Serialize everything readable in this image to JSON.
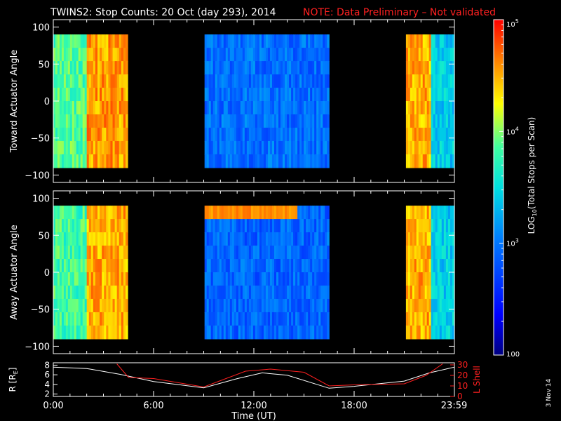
{
  "header": {
    "title": "TWINS2: Stop Counts: 20 Oct (day 293), 2014",
    "note": "NOTE: Data Preliminary – Not validated"
  },
  "colors": {
    "background": "#000000",
    "axes": "#ffffff",
    "note": "#ff2020",
    "r_line": "#ffffff",
    "l_shell_line": "#ff2020"
  },
  "side_date": "3 Nov 14",
  "chart_data": [
    {
      "type": "heatmap",
      "ylabel": "Toward Actuator Angle",
      "y_ticks": [
        "100",
        "50",
        "0",
        "−50",
        "−100"
      ],
      "ylim": [
        -110,
        110
      ],
      "xlim_hours": [
        0,
        24
      ],
      "data_y_range": [
        -90,
        90
      ],
      "data_x_intervals_hours": [
        [
          0.0,
          4.45
        ],
        [
          9.05,
          16.5
        ],
        [
          21.1,
          24.0
        ]
      ],
      "segments": [
        {
          "x_hours": [
            0.0,
            2.0
          ],
          "log10_value": 3.85
        },
        {
          "x_hours": [
            2.0,
            4.45
          ],
          "log10_value": 4.55
        },
        {
          "x_hours": [
            9.05,
            16.5
          ],
          "log10_value": 2.95
        },
        {
          "x_hours": [
            21.1,
            22.6
          ],
          "log10_value": 4.5
        },
        {
          "x_hours": [
            22.6,
            24.0
          ],
          "log10_value": 3.4
        }
      ]
    },
    {
      "type": "heatmap",
      "ylabel": "Away Actuator Angle",
      "y_ticks": [
        "100",
        "50",
        "0",
        "−50",
        "−100"
      ],
      "ylim": [
        -110,
        110
      ],
      "xlim_hours": [
        0,
        24
      ],
      "data_y_range": [
        -90,
        90
      ],
      "data_x_intervals_hours": [
        [
          0.0,
          4.45
        ],
        [
          9.05,
          16.5
        ],
        [
          21.1,
          24.0
        ]
      ],
      "features": [
        {
          "description_value": "band near +80 deg",
          "x_hours": [
            9.05,
            14.5
          ],
          "log10_value": 4.6
        }
      ],
      "segments": [
        {
          "x_hours": [
            0.0,
            2.0
          ],
          "log10_value": 3.8
        },
        {
          "x_hours": [
            2.0,
            4.45
          ],
          "log10_value": 4.5
        },
        {
          "x_hours": [
            9.05,
            16.5
          ],
          "log10_value": 2.9
        },
        {
          "x_hours": [
            21.1,
            22.6
          ],
          "log10_value": 4.5
        },
        {
          "x_hours": [
            22.6,
            24.0
          ],
          "log10_value": 3.4
        }
      ]
    },
    {
      "type": "line",
      "ylabel": "R [R",
      "ylabel_sub": "E",
      "ylabel_close": "]",
      "y2label": "L Shell",
      "xlabel": "Time (UT)",
      "x_ticks": [
        "0:00",
        "6:00",
        "12:00",
        "18:00",
        "23:59"
      ],
      "x_tick_hours": [
        0,
        6,
        12,
        18,
        23.98
      ],
      "y_ticks": [
        "8",
        "6",
        "4",
        "2"
      ],
      "y_tick_values": [
        8,
        6,
        4,
        2
      ],
      "ylim": [
        1.5,
        8.5
      ],
      "y2_ticks": [
        "30",
        "20",
        "10",
        "0"
      ],
      "y2_tick_values": [
        30,
        20,
        10,
        0
      ],
      "y2lim": [
        0,
        32
      ],
      "series": [
        {
          "name": "R",
          "x": [
            0,
            2,
            4,
            6,
            9,
            11,
            12.5,
            14,
            16.5,
            18,
            21,
            22.5,
            24
          ],
          "y": [
            7.6,
            7.3,
            6.1,
            4.6,
            3.3,
            5.2,
            6.4,
            5.9,
            3.2,
            3.6,
            4.7,
            6.4,
            7.6
          ]
        },
        {
          "name": "L Shell",
          "x": [
            3.8,
            4.5,
            6,
            9,
            11.5,
            13,
            15,
            16.5,
            18,
            21,
            22.3,
            23.3
          ],
          "y": [
            31,
            18,
            17,
            9,
            24,
            26,
            23,
            10,
            11,
            12,
            20,
            31
          ]
        }
      ]
    }
  ],
  "colorbar": {
    "label_prefix": "LOG",
    "label_sub": "10",
    "label_suffix": "(Total Stops per Scan)",
    "tick_labels": [
      "10",
      "10",
      "10",
      "100"
    ],
    "tick_exponents": [
      "5",
      "4",
      "3",
      ""
    ],
    "tick_values_log10": [
      5,
      4,
      3,
      2
    ],
    "range_log10": [
      2,
      5
    ]
  }
}
